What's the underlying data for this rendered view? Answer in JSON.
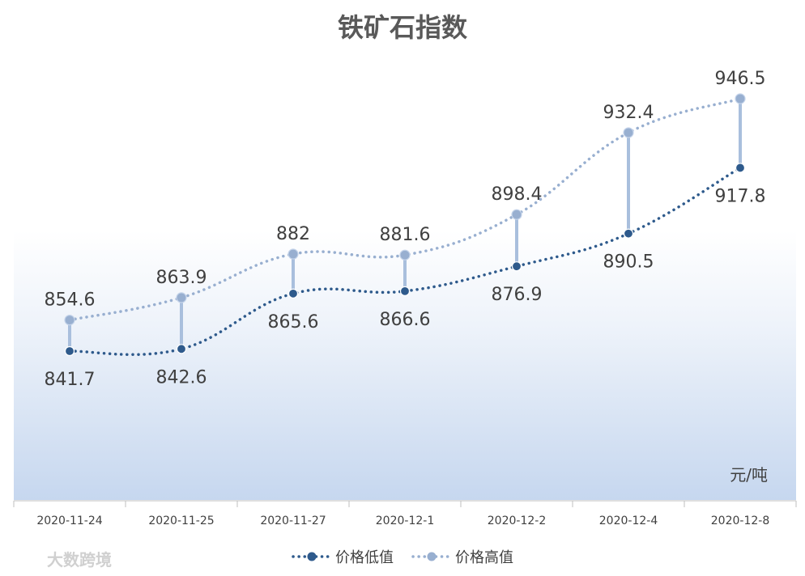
{
  "chart_data": {
    "type": "line",
    "title": "铁矿石指数",
    "unit": "元/吨",
    "categories": [
      "2020-11-24",
      "2020-11-25",
      "2020-11-27",
      "2020-12-1",
      "2020-12-2",
      "2020-12-4",
      "2020-12-8"
    ],
    "series": [
      {
        "name": "价格低值",
        "values": [
          841.7,
          842.6,
          865.6,
          866.6,
          876.9,
          890.5,
          917.8
        ],
        "color": "#2e5a8c"
      },
      {
        "name": "价格高值",
        "values": [
          854.6,
          863.9,
          882,
          881.6,
          898.4,
          932.4,
          946.5
        ],
        "color": "#98afd0"
      }
    ],
    "hi_lo_lines": true,
    "legend_position": "bottom",
    "grid": false,
    "line_style": "dotted-smooth"
  },
  "watermark": "大数跨境"
}
